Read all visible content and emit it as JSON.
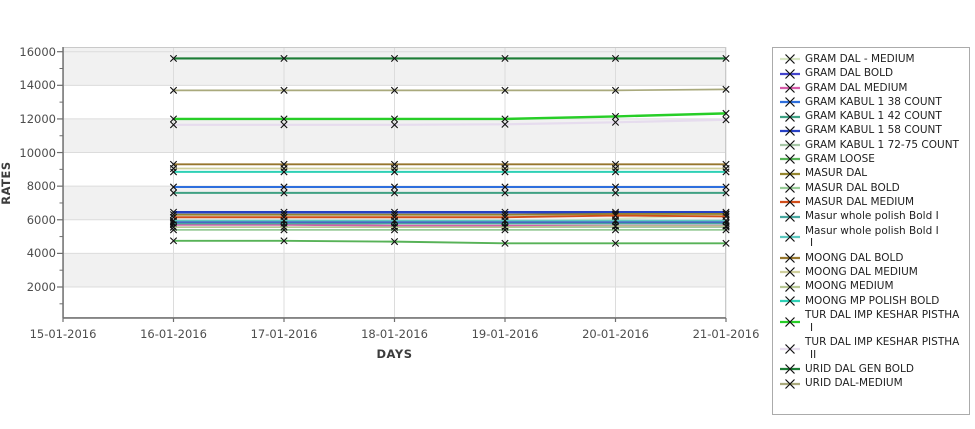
{
  "chart_data": {
    "type": "line",
    "title": "",
    "xlabel": "DAYS",
    "ylabel": "RATES",
    "legend_position": "right",
    "grid": true,
    "band_fill": "#f1f1f1",
    "gridline_color": "#dcdcdc",
    "axis_color": "#6e6e6e",
    "marker_color": "#111111",
    "x_axis_labels": [
      "15-01-2016",
      "16-01-2016",
      "17-01-2016",
      "18-01-2016",
      "19-01-2016",
      "20-01-2016",
      "21-01-2016"
    ],
    "x": [
      "16-01-2016",
      "17-01-2016",
      "18-01-2016",
      "19-01-2016",
      "20-01-2016",
      "21-01-2016"
    ],
    "y_ticks": [
      2000,
      4000,
      6000,
      8000,
      10000,
      12000,
      14000,
      16000
    ],
    "y_minor_ticks": [
      1000,
      3000,
      5000,
      7000,
      9000,
      11000,
      13000,
      15000
    ],
    "ylim": [
      0,
      16280
    ],
    "series": [
      {
        "name": "GRAM DAL - MEDIUM",
        "label_lines": [
          "GRAM DAL - MEDIUM"
        ],
        "color": "#d6e4c2",
        "width": 1.7,
        "values": [
          5900,
          5900,
          5900,
          5900,
          6050,
          6300
        ]
      },
      {
        "name": "GRAM DAL BOLD",
        "label_lines": [
          "GRAM DAL BOLD"
        ],
        "color": "#4444cc",
        "width": 1.9,
        "values": [
          5850,
          5850,
          5850,
          5850,
          5850,
          5850
        ]
      },
      {
        "name": "GRAM DAL MEDIUM",
        "label_lines": [
          "GRAM DAL MEDIUM"
        ],
        "color": "#d65ca8",
        "width": 1.9,
        "values": [
          5700,
          5700,
          5650,
          5650,
          5650,
          5650
        ]
      },
      {
        "name": "GRAM KABUL 1 38 COUNT",
        "label_lines": [
          "GRAM KABUL 1 38 COUNT"
        ],
        "color": "#2e6fdd",
        "width": 1.9,
        "values": [
          7950,
          7950,
          7950,
          7950,
          7950,
          7950
        ]
      },
      {
        "name": "GRAM KABUL 1 42 COUNT",
        "label_lines": [
          "GRAM KABUL 1 42 COUNT"
        ],
        "color": "#3fa183",
        "width": 1.9,
        "values": [
          7600,
          7600,
          7600,
          7600,
          7600,
          7600
        ]
      },
      {
        "name": "GRAM KABUL 1 58 COUNT",
        "label_lines": [
          "GRAM KABUL 1 58 COUNT"
        ],
        "color": "#2740c4",
        "width": 2.5,
        "values": [
          6450,
          6450,
          6450,
          6450,
          6450,
          6450
        ]
      },
      {
        "name": "GRAM KABUL 1 72-75 COUNT",
        "label_lines": [
          "GRAM KABUL 1 72-75 COUNT"
        ],
        "color": "#a6c7a6",
        "width": 1.7,
        "values": [
          5560,
          5560,
          5560,
          5560,
          5560,
          5560
        ]
      },
      {
        "name": "GRAM LOOSE",
        "label_lines": [
          "GRAM LOOSE"
        ],
        "color": "#57b257",
        "width": 1.9,
        "values": [
          4750,
          4750,
          4700,
          4600,
          4600,
          4600
        ]
      },
      {
        "name": "MASUR DAL",
        "label_lines": [
          "MASUR DAL"
        ],
        "color": "#95862f",
        "width": 1.9,
        "values": [
          6300,
          6300,
          6300,
          6300,
          6350,
          6350
        ]
      },
      {
        "name": "MASUR DAL BOLD",
        "label_lines": [
          "MASUR DAL BOLD"
        ],
        "color": "#98cb98",
        "width": 1.7,
        "values": [
          5400,
          5400,
          5400,
          5400,
          5400,
          5400
        ]
      },
      {
        "name": "MASUR DAL MEDIUM",
        "label_lines": [
          "MASUR DAL MEDIUM"
        ],
        "color": "#d24e1a",
        "width": 1.9,
        "values": [
          6150,
          6150,
          6150,
          6150,
          6250,
          6200
        ]
      },
      {
        "name": "Masur whole polish Bold I",
        "label_lines": [
          "Masur whole polish Bold I"
        ],
        "color": "#49a8a0",
        "width": 1.7,
        "values": [
          5780,
          5780,
          5780,
          5780,
          5780,
          5780
        ]
      },
      {
        "name": "Masur whole polish Bold I I",
        "label_lines": [
          "Masur whole polish Bold I",
          "I"
        ],
        "color": "#5ec9c0",
        "width": 1.7,
        "values": [
          5950,
          5950,
          5950,
          5950,
          5950,
          5950
        ]
      },
      {
        "name": "MOONG DAL BOLD",
        "label_lines": [
          "MOONG DAL BOLD"
        ],
        "color": "#96762e",
        "width": 1.9,
        "values": [
          9300,
          9300,
          9300,
          9300,
          9300,
          9300
        ]
      },
      {
        "name": "MOONG DAL MEDIUM",
        "label_lines": [
          "MOONG DAL MEDIUM"
        ],
        "color": "#cfcf9c",
        "width": 1.7,
        "values": [
          9050,
          9050,
          9050,
          9050,
          9050,
          9050
        ]
      },
      {
        "name": "MOONG MEDIUM",
        "label_lines": [
          "MOONG MEDIUM"
        ],
        "color": "#b8c795",
        "width": 1.7,
        "values": [
          5560,
          5560,
          5560,
          5560,
          5620,
          5620
        ]
      },
      {
        "name": "MOONG MP POLISH BOLD",
        "label_lines": [
          "MOONG MP POLISH BOLD"
        ],
        "color": "#2ed0b5",
        "width": 1.9,
        "values": [
          8850,
          8850,
          8850,
          8850,
          8850,
          8850
        ]
      },
      {
        "name": "TUR DAL IMP KESHAR PISTHA I",
        "label_lines": [
          "TUR DAL IMP KESHAR PISTHA",
          "I"
        ],
        "color": "#27ce27",
        "width": 2.4,
        "values": [
          12000,
          12000,
          12000,
          12000,
          12150,
          12330
        ]
      },
      {
        "name": "TUR DAL IMP KESHAR PISTHA II",
        "label_lines": [
          "TUR DAL IMP KESHAR PISTHA",
          "II"
        ],
        "color": "#e6dcee",
        "width": 2.2,
        "values": [
          11650,
          11650,
          11650,
          11680,
          11800,
          11950
        ]
      },
      {
        "name": "URID DAL GEN BOLD",
        "label_lines": [
          "URID DAL GEN BOLD"
        ],
        "color": "#1c7c35",
        "width": 2.2,
        "values": [
          15600,
          15600,
          15600,
          15600,
          15600,
          15600
        ]
      },
      {
        "name": "URID DAL-MEDIUM",
        "label_lines": [
          "URID DAL-MEDIUM"
        ],
        "color": "#a9a97c",
        "width": 1.7,
        "values": [
          13700,
          13700,
          13700,
          13700,
          13700,
          13760
        ]
      }
    ]
  },
  "axes": {
    "x_title": "DAYS",
    "y_title": "RATES"
  }
}
